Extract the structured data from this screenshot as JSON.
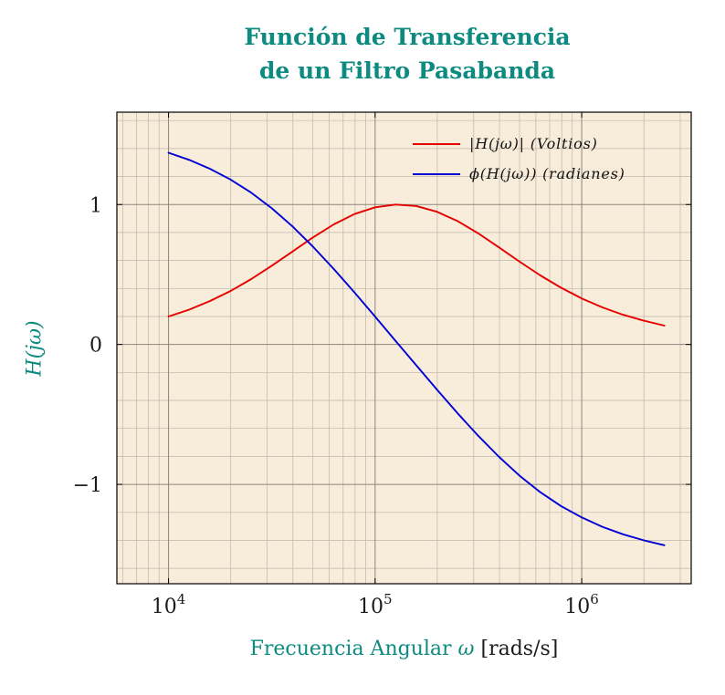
{
  "title": {
    "line1": "Función de Transferencia",
    "line2": "de un Filtro Pasabanda"
  },
  "axes": {
    "y_label": "H(jω)",
    "x_label_main": "Frecuencia Angular",
    "x_label_symbol": "ω",
    "x_label_units": "[rads/s]"
  },
  "colors": {
    "teal": "#0e8b80",
    "plot_bg": "#f8edda",
    "grid_minor": "#bdb6a9",
    "grid_major": "#8a857c",
    "frame": "#000000",
    "tick_text": "#1c1c1c",
    "magnitude": "#e60000",
    "phase": "#0000d5"
  },
  "chart_data": {
    "type": "line",
    "title": "Función de Transferencia de un Filtro Pasabanda",
    "xlabel": "Frecuencia Angular ω [rads/s]",
    "ylabel": "H(jω)",
    "grid": "both",
    "x_axis": {
      "scale": "log10",
      "units": "rad/s",
      "log10_min": 3.75,
      "log10_max": 6.53,
      "major_ticks_log10": [
        4,
        5,
        6
      ],
      "tick_labels": [
        {
          "base": "10",
          "exp": "4"
        },
        {
          "base": "10",
          "exp": "5"
        },
        {
          "base": "10",
          "exp": "6"
        }
      ]
    },
    "y_axis": {
      "min": -1.71,
      "max": 1.66,
      "major_ticks": [
        -1,
        0,
        1
      ],
      "tick_labels": [
        "−1",
        "0",
        "1"
      ],
      "minor_step": 0.2
    },
    "legend": {
      "position": "top-right",
      "frame": false
    },
    "series": [
      {
        "name": "|H(jω)| (Voltios)",
        "color": "#e60000",
        "x_log10": [
          4.0,
          4.1,
          4.2,
          4.3,
          4.4,
          4.5,
          4.6,
          4.7,
          4.8,
          4.9,
          5.0,
          5.1,
          5.2,
          5.3,
          5.4,
          5.5,
          5.6,
          5.7,
          5.8,
          5.9,
          6.0,
          6.1,
          6.2,
          6.3,
          6.4
        ],
        "y": [
          0.2,
          0.249,
          0.31,
          0.382,
          0.467,
          0.563,
          0.664,
          0.766,
          0.858,
          0.932,
          0.98,
          1.0,
          0.989,
          0.948,
          0.881,
          0.793,
          0.693,
          0.591,
          0.493,
          0.405,
          0.329,
          0.265,
          0.212,
          0.17,
          0.135
        ]
      },
      {
        "name": "ϕ(H(jω)) (radianes)",
        "color": "#0000d5",
        "x_log10": [
          4.0,
          4.1,
          4.2,
          4.3,
          4.4,
          4.5,
          4.6,
          4.7,
          4.8,
          4.9,
          5.0,
          5.1,
          5.2,
          5.3,
          5.4,
          5.5,
          5.6,
          5.7,
          5.8,
          5.9,
          6.0,
          6.1,
          6.2,
          6.3,
          6.4
        ],
        "y": [
          1.37,
          1.319,
          1.256,
          1.179,
          1.085,
          0.973,
          0.844,
          0.698,
          0.539,
          0.372,
          0.199,
          0.024,
          -0.15,
          -0.324,
          -0.493,
          -0.655,
          -0.804,
          -0.939,
          -1.056,
          -1.155,
          -1.236,
          -1.303,
          -1.357,
          -1.4,
          -1.435
        ]
      }
    ]
  }
}
